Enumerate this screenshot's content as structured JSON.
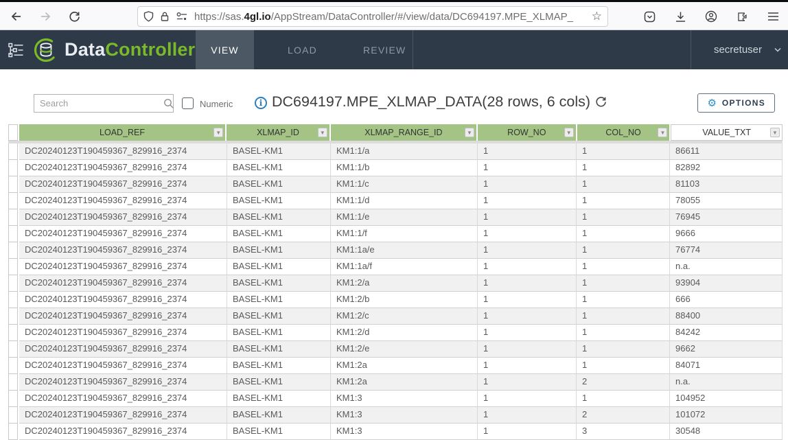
{
  "browser": {
    "url_prefix": "https://sas.",
    "url_domain": "4gl.io",
    "url_path": "/AppStream/DataController/#/view/data/DC694197.MPE_XLMAP_",
    "star_glyph": "☆"
  },
  "header": {
    "logo_part1": "Data",
    "logo_part2": "Controller",
    "tabs": [
      {
        "label": "VIEW",
        "active": true
      },
      {
        "label": "LOAD",
        "active": false
      },
      {
        "label": "REVIEW",
        "active": false
      }
    ],
    "user": "secretuser"
  },
  "toolbar": {
    "search_placeholder": "Search",
    "numeric_label": "Numeric",
    "info_glyph": "i",
    "title": "DC694197.MPE_XLMAP_DATA(28 rows, 6 cols)",
    "options_label": "OPTIONS",
    "gear_glyph": "⚙"
  },
  "table": {
    "columns": [
      "LOAD_REF",
      "XLMAP_ID",
      "XLMAP_RANGE_ID",
      "ROW_NO",
      "COL_NO",
      "VALUE_TXT"
    ],
    "filter_glyph": "▼",
    "rows": [
      [
        "DC20240123T190459367_829916_2374",
        "BASEL-KM1",
        "KM1:1/a",
        "1",
        "1",
        "86611"
      ],
      [
        "DC20240123T190459367_829916_2374",
        "BASEL-KM1",
        "KM1:1/b",
        "1",
        "1",
        "82892"
      ],
      [
        "DC20240123T190459367_829916_2374",
        "BASEL-KM1",
        "KM1:1/c",
        "1",
        "1",
        "81103"
      ],
      [
        "DC20240123T190459367_829916_2374",
        "BASEL-KM1",
        "KM1:1/d",
        "1",
        "1",
        "78055"
      ],
      [
        "DC20240123T190459367_829916_2374",
        "BASEL-KM1",
        "KM1:1/e",
        "1",
        "1",
        "76945"
      ],
      [
        "DC20240123T190459367_829916_2374",
        "BASEL-KM1",
        "KM1:1/f",
        "1",
        "1",
        "9666"
      ],
      [
        "DC20240123T190459367_829916_2374",
        "BASEL-KM1",
        "KM1:1a/e",
        "1",
        "1",
        "76774"
      ],
      [
        "DC20240123T190459367_829916_2374",
        "BASEL-KM1",
        "KM1:1a/f",
        "1",
        "1",
        "n.a."
      ],
      [
        "DC20240123T190459367_829916_2374",
        "BASEL-KM1",
        "KM1:2/a",
        "1",
        "1",
        "93904"
      ],
      [
        "DC20240123T190459367_829916_2374",
        "BASEL-KM1",
        "KM1:2/b",
        "1",
        "1",
        "666"
      ],
      [
        "DC20240123T190459367_829916_2374",
        "BASEL-KM1",
        "KM1:2/c",
        "1",
        "1",
        "88400"
      ],
      [
        "DC20240123T190459367_829916_2374",
        "BASEL-KM1",
        "KM1:2/d",
        "1",
        "1",
        "84242"
      ],
      [
        "DC20240123T190459367_829916_2374",
        "BASEL-KM1",
        "KM1:2/e",
        "1",
        "1",
        "9662"
      ],
      [
        "DC20240123T190459367_829916_2374",
        "BASEL-KM1",
        "KM1:2a",
        "1",
        "1",
        "84071"
      ],
      [
        "DC20240123T190459367_829916_2374",
        "BASEL-KM1",
        "KM1:2a",
        "1",
        "2",
        "n.a."
      ],
      [
        "DC20240123T190459367_829916_2374",
        "BASEL-KM1",
        "KM1:3",
        "1",
        "1",
        "104952"
      ],
      [
        "DC20240123T190459367_829916_2374",
        "BASEL-KM1",
        "KM1:3",
        "1",
        "2",
        "101072"
      ],
      [
        "DC20240123T190459367_829916_2374",
        "BASEL-KM1",
        "KM1:3",
        "1",
        "3",
        "30548"
      ]
    ]
  },
  "colors": {
    "navy": "#2e3a47",
    "tab-active": "#4c5964",
    "green": "#79b92a",
    "thead": "#a3c484",
    "info-blue": "#2b7fc1",
    "gear-blue": "#2b8fc7",
    "row-grey": "#f1f1f2"
  }
}
